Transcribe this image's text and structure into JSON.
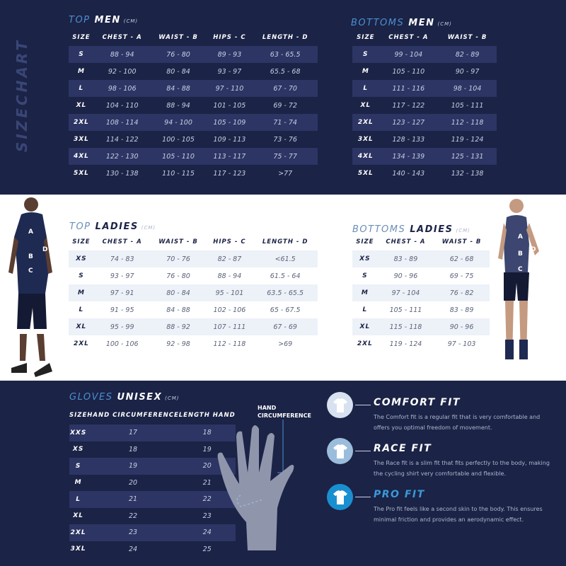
{
  "side_title": "SIZECHART",
  "colors": {
    "navy": "#1b2346",
    "accent": "#4b8fd0",
    "stripe_dark": "#2c3563",
    "stripe_light": "#edf1f8"
  },
  "top_men": {
    "title_a": "TOP",
    "title_b": "MEN",
    "unit": "(CM)",
    "headers": [
      "SIZE",
      "CHEST - A",
      "WAIST - B",
      "HIPS - C",
      "LENGTH  - D"
    ],
    "rows": [
      [
        "S",
        "88 - 94",
        "76 - 80",
        "89 - 93",
        "63 - 65.5"
      ],
      [
        "M",
        "92 - 100",
        "80 - 84",
        "93 - 97",
        "65.5 - 68"
      ],
      [
        "L",
        "98 - 106",
        "84 - 88",
        "97 - 110",
        "67 - 70"
      ],
      [
        "XL",
        "104 - 110",
        "88 - 94",
        "101 - 105",
        "69 - 72"
      ],
      [
        "2XL",
        "108 - 114",
        "94 - 100",
        "105 - 109",
        "71 - 74"
      ],
      [
        "3XL",
        "114 - 122",
        "100 - 105",
        "109 - 113",
        "73 - 76"
      ],
      [
        "4XL",
        "122 - 130",
        "105 - 110",
        "113 - 117",
        "75 - 77"
      ],
      [
        "5XL",
        "130 - 138",
        "110 - 115",
        "117 - 123",
        ">77"
      ]
    ]
  },
  "bottoms_men": {
    "title_a": "BOTTOMS",
    "title_b": "MEN",
    "unit": "(CM)",
    "headers": [
      "SIZE",
      "CHEST - A",
      "WAIST - B"
    ],
    "rows": [
      [
        "S",
        "99 - 104",
        "82 - 89"
      ],
      [
        "M",
        "105 - 110",
        "90 - 97"
      ],
      [
        "L",
        "111 - 116",
        "98 - 104"
      ],
      [
        "XL",
        "117 - 122",
        "105 - 111"
      ],
      [
        "2XL",
        "123 - 127",
        "112 - 118"
      ],
      [
        "3XL",
        "128 - 133",
        "119 - 124"
      ],
      [
        "4XL",
        "134 - 139",
        "125 - 131"
      ],
      [
        "5XL",
        "140 - 143",
        "132 - 138"
      ]
    ]
  },
  "top_ladies": {
    "title_a": "TOP",
    "title_b": "LADIES",
    "unit": "(CM)",
    "headers": [
      "SIZE",
      "CHEST - A",
      "WAIST - B",
      "HIPS - C",
      "LENGTH  - D"
    ],
    "rows": [
      [
        "XS",
        "74 - 83",
        "70 - 76",
        "82 - 87",
        "<61.5"
      ],
      [
        "S",
        "93 - 97",
        "76 - 80",
        "88 - 94",
        "61.5 - 64"
      ],
      [
        "M",
        "97 - 91",
        "80 - 84",
        "95 - 101",
        "63.5 - 65.5"
      ],
      [
        "L",
        "91 - 95",
        "84 - 88",
        "102 - 106",
        "65 - 67.5"
      ],
      [
        "XL",
        "95 - 99",
        "88 - 92",
        "107 - 111",
        "67 - 69"
      ],
      [
        "2XL",
        "100 - 106",
        "92 - 98",
        "112 - 118",
        ">69"
      ]
    ]
  },
  "bottoms_ladies": {
    "title_a": "BOTTOMS",
    "title_b": "LADIES",
    "unit": "(CM)",
    "headers": [
      "SIZE",
      "CHEST - A",
      "WAIST - B"
    ],
    "rows": [
      [
        "XS",
        "83 - 89",
        "62 - 68"
      ],
      [
        "S",
        "90 - 96",
        "69 - 75"
      ],
      [
        "M",
        "97 - 104",
        "76 - 82"
      ],
      [
        "L",
        "105 - 111",
        "83 - 89"
      ],
      [
        "XL",
        "115 - 118",
        "90 - 96"
      ],
      [
        "2XL",
        "119 - 124",
        "97 - 103"
      ]
    ]
  },
  "gloves": {
    "title_a": "GLOVES",
    "title_b": "UNISEX",
    "unit": "(CM)",
    "headers": [
      "SIZE",
      "HAND CIRCUMFERENCE",
      "LENGTH HAND"
    ],
    "rows": [
      [
        "XXS",
        "17",
        "18"
      ],
      [
        "XS",
        "18",
        "19"
      ],
      [
        "S",
        "19",
        "20"
      ],
      [
        "M",
        "20",
        "21"
      ],
      [
        "L",
        "21",
        "22"
      ],
      [
        "XL",
        "22",
        "23"
      ],
      [
        "2XL",
        "23",
        "24"
      ],
      [
        "3XL",
        "24",
        "25"
      ]
    ],
    "hand_label_1": "HAND",
    "hand_label_2": "CIRCUMFERENCE"
  },
  "figure_letters": {
    "a": "A",
    "b": "B",
    "c": "C",
    "d": "D"
  },
  "fits": [
    {
      "name": "COMFORT FIT",
      "description": "The Comfort fit is a regular fit that is very comfortable and offers you optimal freedom of movement.",
      "circle_color": "#d7e1f0",
      "name_color": "#ffffff"
    },
    {
      "name": "RACE FIT",
      "description": "The Race fit is a slim fit that fits perfectly to the body, making the cycling shirt very comfortable and flexible.",
      "circle_color": "#9cbcdc",
      "name_color": "#ffffff"
    },
    {
      "name": "PRO FIT",
      "description": "The Pro fit feels like a second skin to the body. This ensures minimal friction and provides an aerodynamic effect.",
      "circle_color": "#1a8fd0",
      "name_color": "#3a9ad8"
    }
  ]
}
